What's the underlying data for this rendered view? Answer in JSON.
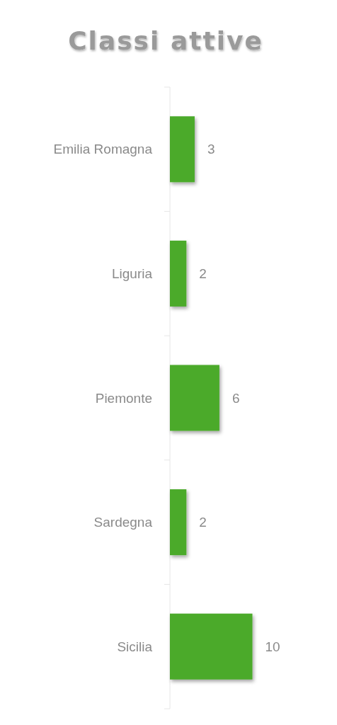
{
  "chart_data": {
    "type": "bar",
    "orientation": "horizontal",
    "title": "Classi attive",
    "categories": [
      "Emilia Romagna",
      "Liguria",
      "Piemonte",
      "Sardegna",
      "Sicilia"
    ],
    "values": [
      3,
      2,
      6,
      2,
      10
    ],
    "color": "#4caa2c",
    "data_labels": true,
    "tick_labels": "y"
  }
}
